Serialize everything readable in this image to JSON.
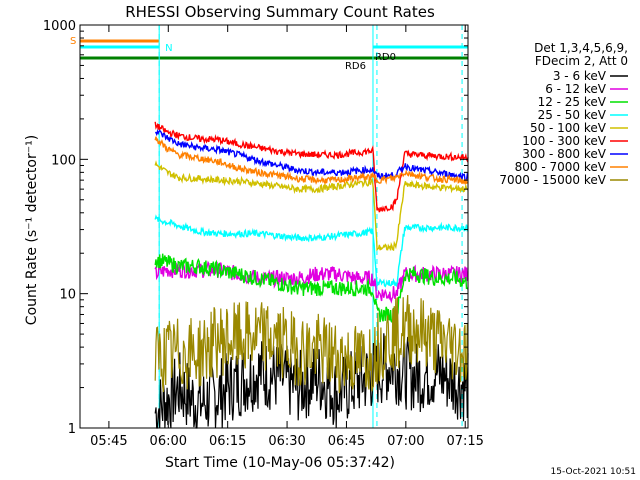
{
  "chart_data": {
    "type": "line",
    "title": "RHESSI Observing Summary Count Rates",
    "xlabel": "Start Time (10-May-06 05:37:42)",
    "ylabel": "Count Rate (s⁻¹ detector⁻¹)",
    "x_unit": "minutes since 05:37:42 UT",
    "xlim": [
      0,
      98
    ],
    "ylim": [
      1,
      1000
    ],
    "yscale": "log",
    "x_tick_labels": [
      "05:45",
      "06:00",
      "06:15",
      "06:30",
      "06:45",
      "07:00",
      "07:15"
    ],
    "x_tick_values": [
      7.3,
      22.3,
      37.3,
      52.3,
      67.3,
      82.3,
      97.3
    ],
    "y_tick_labels": [
      "1",
      "10",
      "100",
      "1000"
    ],
    "y_tick_values": [
      1,
      10,
      100,
      1000
    ],
    "legend_header": [
      "Det 1,3,4,5,6,9,",
      "FDecim 2, Att 0"
    ],
    "legend_position": "right",
    "timestamp": "15-Oct-2021 10:51",
    "x_sample": [
      19,
      22,
      25,
      30,
      35,
      40,
      45,
      50,
      55,
      60,
      65,
      70,
      74,
      75,
      79,
      80,
      82,
      85,
      90,
      95,
      98
    ],
    "series": [
      {
        "name": "3 - 6 keV",
        "color": "#000000",
        "values": [
          1.3,
          1.6,
          2.0,
          1.5,
          1.8,
          2.2,
          2.6,
          2.4,
          2.0,
          2.4,
          1.8,
          2.2,
          2.5,
          2.6,
          3.0,
          2.8,
          2.6,
          2.4,
          2.6,
          2.2,
          2.0
        ]
      },
      {
        "name": "6 - 12 keV",
        "color": "#e000e0",
        "values": [
          14,
          15,
          15,
          15,
          15,
          14,
          13,
          13,
          13,
          14,
          14,
          13,
          13,
          10,
          10,
          10,
          14,
          14,
          14,
          14,
          14
        ]
      },
      {
        "name": "12 - 25 keV",
        "color": "#00e000",
        "values": [
          18,
          17,
          16,
          16,
          15,
          14,
          13,
          12,
          11,
          11,
          11,
          11,
          11,
          7,
          7,
          7,
          14,
          14,
          13,
          13,
          12
        ]
      },
      {
        "name": "25 - 50 keV",
        "color": "#00ffff",
        "values": [
          36,
          34,
          32,
          29,
          28,
          28,
          28,
          27,
          26,
          26,
          27,
          28,
          29,
          12,
          12,
          12,
          31,
          31,
          31,
          31,
          31
        ]
      },
      {
        "name": "50 - 100 keV",
        "color": "#d0c000",
        "values": [
          92,
          80,
          73,
          72,
          70,
          69,
          66,
          63,
          60,
          60,
          63,
          66,
          68,
          22,
          22,
          24,
          65,
          64,
          62,
          61,
          60
        ]
      },
      {
        "name": "100 - 300 keV",
        "color": "#ff0000",
        "values": [
          180,
          160,
          150,
          142,
          140,
          130,
          122,
          115,
          110,
          108,
          108,
          112,
          116,
          42,
          45,
          50,
          110,
          108,
          106,
          104,
          103
        ]
      },
      {
        "name": "300 - 800 keV",
        "color": "#0000ff",
        "values": [
          165,
          145,
          130,
          122,
          118,
          108,
          98,
          90,
          83,
          80,
          80,
          82,
          84,
          75,
          76,
          78,
          90,
          84,
          80,
          76,
          74
        ]
      },
      {
        "name": "800 - 7000 keV",
        "color": "#ff8000",
        "values": [
          145,
          120,
          108,
          102,
          96,
          86,
          80,
          76,
          72,
          70,
          70,
          73,
          74,
          70,
          72,
          74,
          80,
          76,
          72,
          70,
          68
        ]
      },
      {
        "name": "7000 - 15000 keV",
        "color": "#9a8800",
        "values": [
          3.2,
          3.5,
          3.6,
          3.6,
          4.5,
          4.6,
          4.8,
          4.5,
          3.8,
          3.8,
          3.4,
          3.2,
          3.5,
          4.0,
          5.0,
          5.0,
          5.5,
          5.5,
          4.5,
          4.0,
          3.8
        ]
      }
    ],
    "state_flags": [
      {
        "label": "S",
        "color": "#ff8000"
      },
      {
        "label": "N",
        "color": "#00ffff"
      },
      {
        "label": "RD0",
        "color": "#00ffff"
      },
      {
        "label": "RD6",
        "color": "#008000"
      }
    ],
    "attenuator_intervals": [
      {
        "start": 0.0,
        "end": 0.5
      },
      {
        "start": 20.0,
        "end": 20.3
      },
      {
        "start": 74.0,
        "end": 74.5
      }
    ],
    "gap_markers": [
      20.0,
      75.0,
      96.5
    ],
    "flag_S_interval": [
      0,
      20
    ],
    "flag_N_interval": [
      0,
      20
    ],
    "flag_N_interval_2": [
      74,
      98
    ],
    "flag_RD6_interval": [
      0,
      98
    ]
  }
}
